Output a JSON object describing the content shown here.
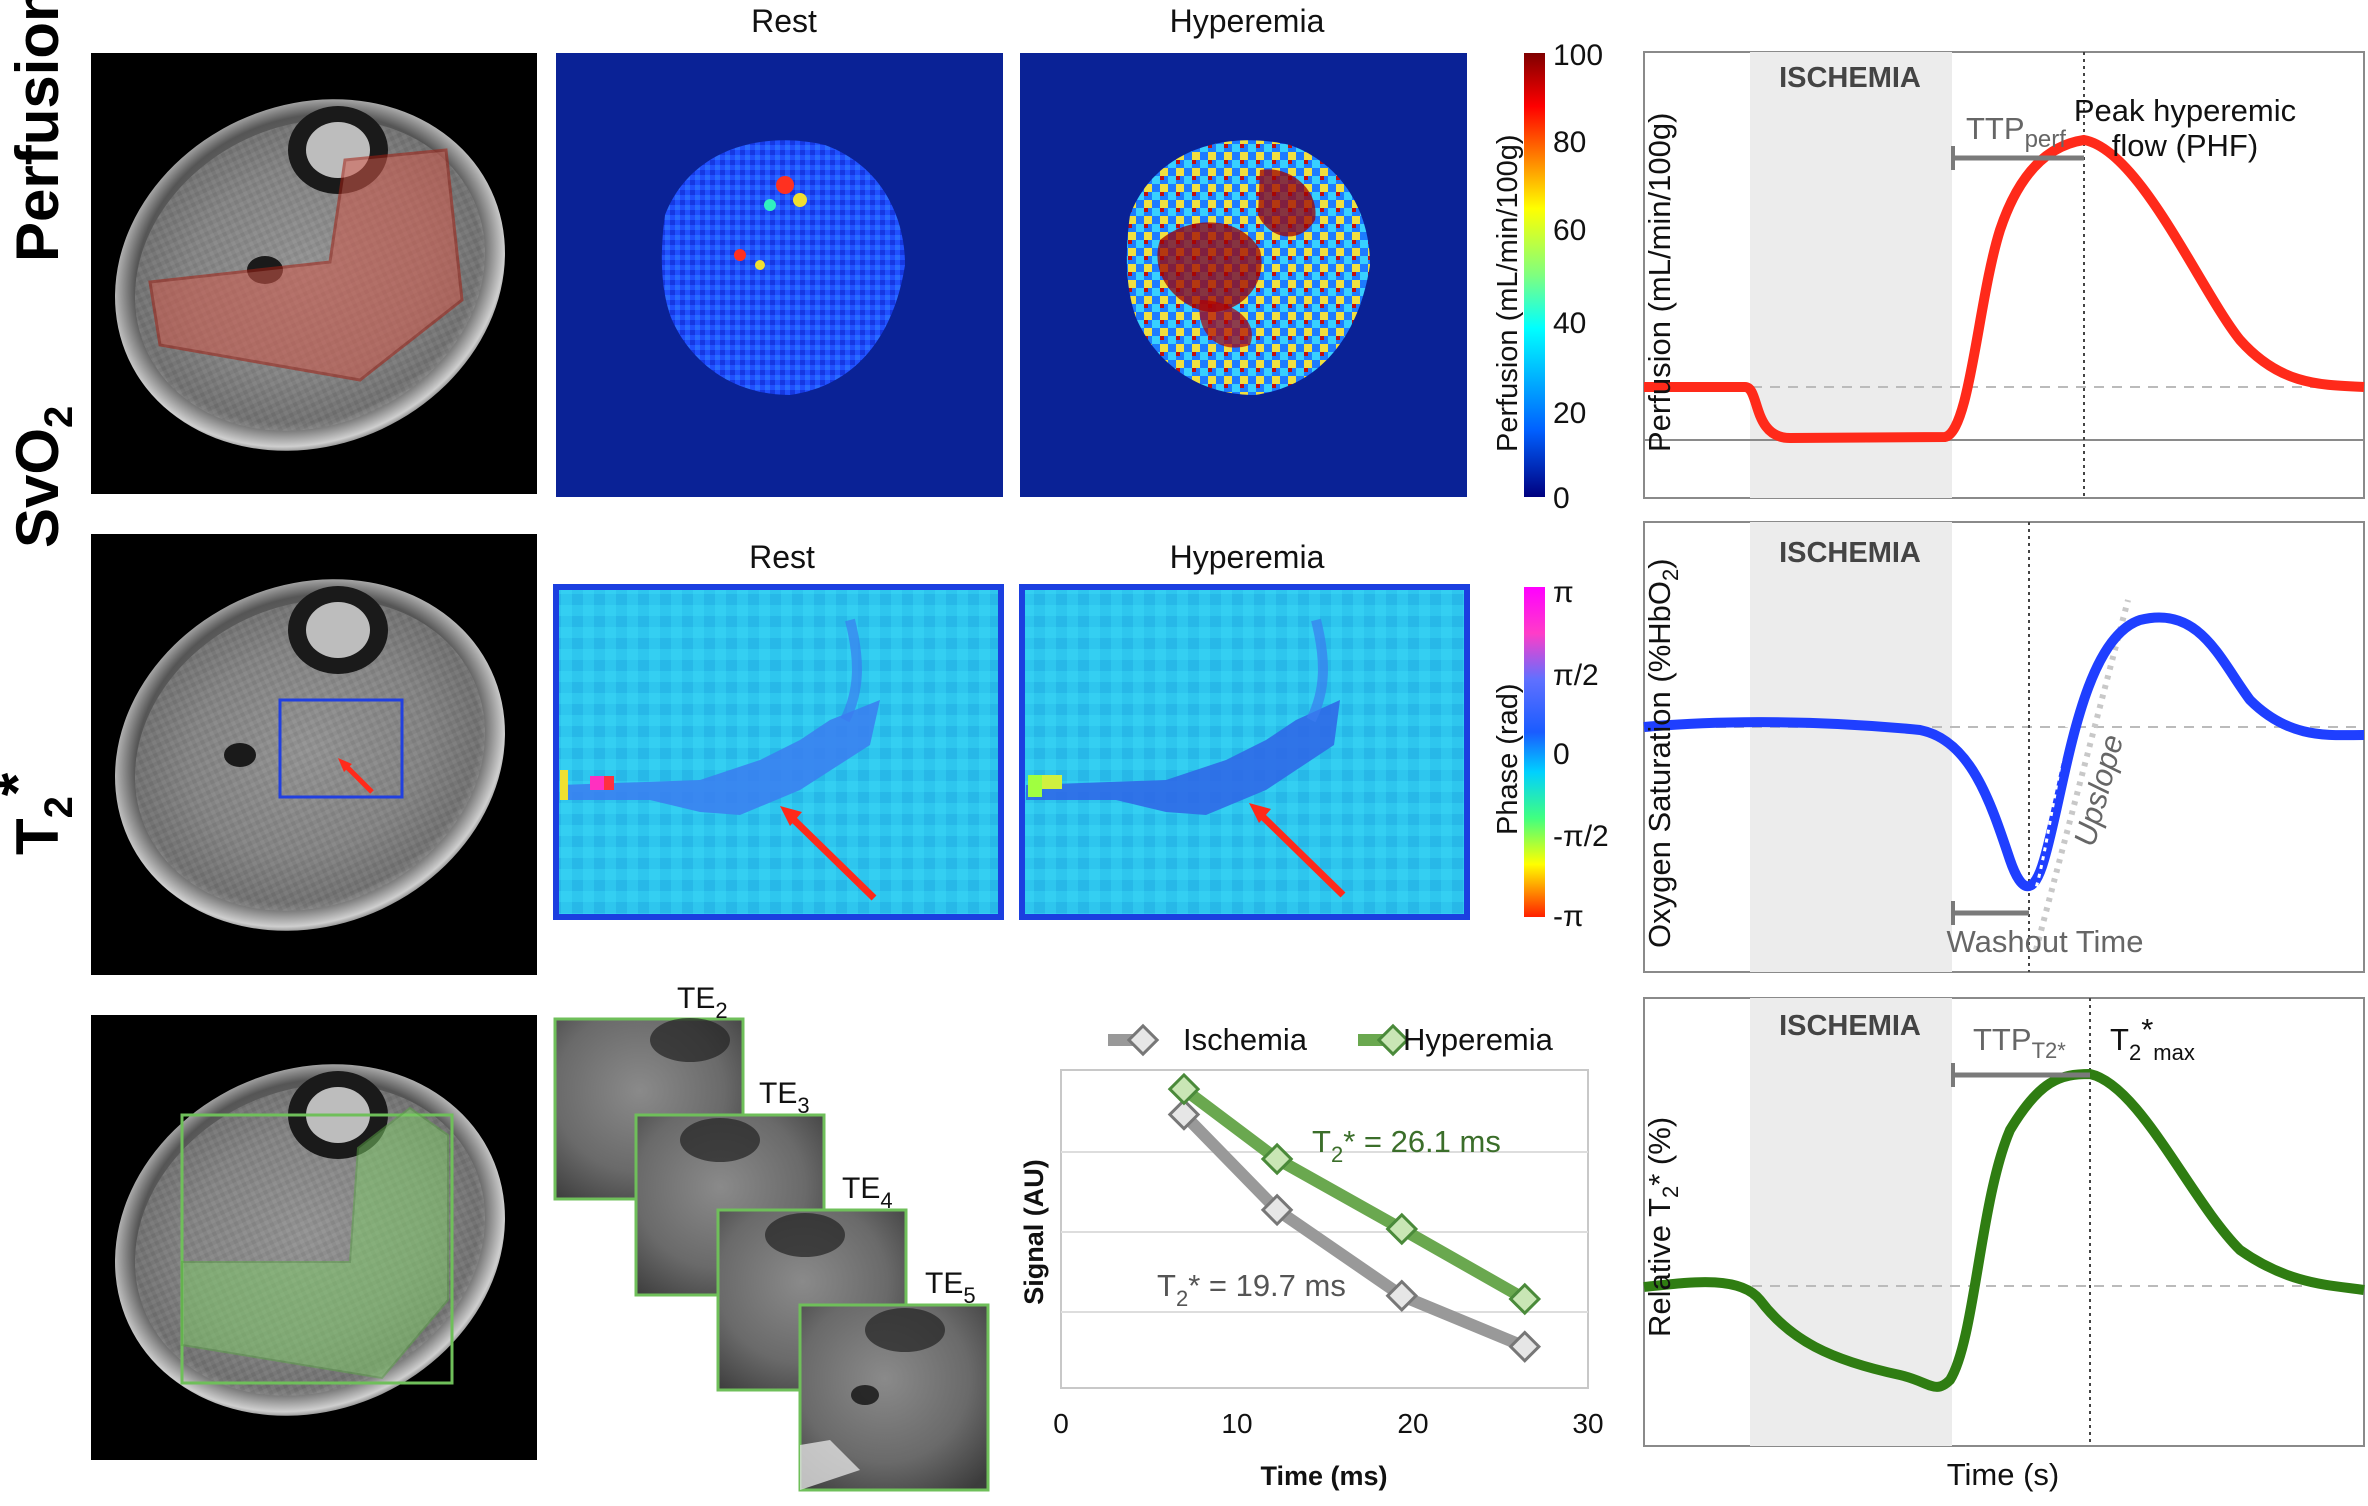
{
  "rows": {
    "perfusion": "Perfusion",
    "svo2": "SvO",
    "svo2_sub": "2",
    "t2star": "T",
    "t2star_sub": "2",
    "t2star_sup": "*"
  },
  "perfusion_maps": {
    "rest_title": "Rest",
    "hyperemia_title": "Hyperemia",
    "colorbar_label": "Perfusion (mL/min/100g)",
    "colorbar_ticks": [
      "100",
      "80",
      "60",
      "40",
      "20",
      "0"
    ]
  },
  "phase_maps": {
    "rest_title": "Rest",
    "hyperemia_title": "Hyperemia",
    "colorbar_label": "Phase (rad)",
    "colorbar_ticks": [
      "π",
      "π/2",
      "0",
      "-π/2",
      "-π"
    ]
  },
  "te_labels": [
    "TE",
    "TE",
    "TE",
    "TE"
  ],
  "te_subs": [
    "2",
    "3",
    "4",
    "5"
  ],
  "decay_chart": {
    "legend_ischemia": "Ischemia",
    "legend_hyperemia": "Hyperemia",
    "ischemia_fit_prefix": "T",
    "ischemia_fit_sub": "2",
    "ischemia_fit_suffix": "* = 19.7 ms",
    "hyperemia_fit_prefix": "T",
    "hyperemia_fit_sub": "2",
    "hyperemia_fit_suffix": "* = 26.1 ms"
  },
  "chart_data": {
    "type": "scatter",
    "title": "",
    "xlabel": "Time (ms)",
    "ylabel": "Signal (AU)",
    "xlim": [
      0,
      30
    ],
    "x_ticks": [
      "0",
      "10",
      "20",
      "30"
    ],
    "grid": true,
    "legend": "top",
    "series": [
      {
        "name": "Ischemia",
        "color": "#999999",
        "x": [
          7,
          12.3,
          19.4,
          26.4
        ],
        "y": [
          0.86,
          0.56,
          0.29,
          0.13
        ]
      },
      {
        "name": "Hyperemia",
        "color": "#6aa84f",
        "x": [
          7,
          12.3,
          19.4,
          26.4
        ],
        "y": [
          0.94,
          0.72,
          0.5,
          0.28
        ]
      }
    ]
  },
  "curve_panels": {
    "ischemia_label": "ISCHEMIA",
    "perf_ylabel": "Perfusion (mL/min/100g)",
    "ttp_perf_main": "TTP",
    "ttp_perf_sub": "perf",
    "phf_line1": "Peak hyperemic",
    "phf_line2": "flow (PHF)",
    "oxy_ylabel": "Oxygen Saturation (%HbO",
    "oxy_ylabel_sub": "2",
    "oxy_ylabel_end": ")",
    "upslope": "Upslope",
    "washout": "Washout Time",
    "t2_ylabel_prefix": "Relative T",
    "t2_ylabel_sub": "2",
    "t2_ylabel_suffix": "* (%)",
    "ttp_t2_main": "TTP",
    "ttp_t2_sub": "T2*",
    "t2max_main": "T",
    "t2max_sub": "2",
    "t2max_star": "*",
    "t2max_sub2": "max",
    "time_label": "Time (s)"
  },
  "colors": {
    "perfusion_curve": "#ff2a1a",
    "oxygen_curve": "#1f3fff",
    "t2_curve": "#2f7d12",
    "ischemia_band": "#ececec",
    "phase_frame": "#1b3fe0",
    "roi_red": "#c0392b",
    "roi_green": "#6fbf5a"
  }
}
